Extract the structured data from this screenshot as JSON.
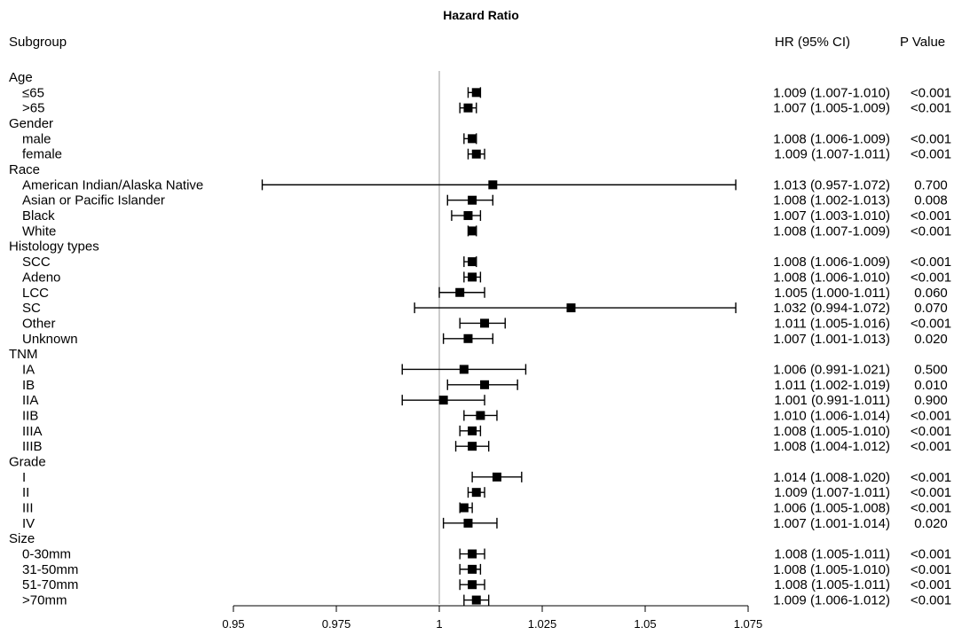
{
  "chart_data": {
    "type": "forest",
    "title": "Hazard Ratio",
    "columns": {
      "subgroup": "Subgroup",
      "hr": "HR (95% CI)",
      "p": "P Value"
    },
    "xlim": [
      0.95,
      1.075
    ],
    "reference_line": 1,
    "ticks": [
      0.95,
      0.975,
      1,
      1.025,
      1.05,
      1.075
    ],
    "tick_labels": [
      "0.95",
      "0.975",
      "1",
      "1.025",
      "1.05",
      "1.075"
    ],
    "rows": [
      {
        "kind": "header",
        "label": "Age"
      },
      {
        "kind": "item",
        "label": "≤65",
        "hr": 1.009,
        "lo": 1.007,
        "hi": 1.01,
        "ci_text": "1.009 (1.007-1.010)",
        "p": "<0.001"
      },
      {
        "kind": "item",
        "label": ">65",
        "hr": 1.007,
        "lo": 1.005,
        "hi": 1.009,
        "ci_text": "1.007 (1.005-1.009)",
        "p": "<0.001"
      },
      {
        "kind": "header",
        "label": "Gender"
      },
      {
        "kind": "item",
        "label": "male",
        "hr": 1.008,
        "lo": 1.006,
        "hi": 1.009,
        "ci_text": "1.008 (1.006-1.009)",
        "p": "<0.001"
      },
      {
        "kind": "item",
        "label": "female",
        "hr": 1.009,
        "lo": 1.007,
        "hi": 1.011,
        "ci_text": "1.009 (1.007-1.011)",
        "p": "<0.001"
      },
      {
        "kind": "header",
        "label": "Race"
      },
      {
        "kind": "item",
        "label": "American Indian/Alaska Native",
        "hr": 1.013,
        "lo": 0.957,
        "hi": 1.072,
        "ci_text": "1.013 (0.957-1.072)",
        "p": "0.700"
      },
      {
        "kind": "item",
        "label": "Asian or Pacific Islander",
        "hr": 1.008,
        "lo": 1.002,
        "hi": 1.013,
        "ci_text": "1.008 (1.002-1.013)",
        "p": "0.008"
      },
      {
        "kind": "item",
        "label": "Black",
        "hr": 1.007,
        "lo": 1.003,
        "hi": 1.01,
        "ci_text": "1.007 (1.003-1.010)",
        "p": "<0.001"
      },
      {
        "kind": "item",
        "label": "White",
        "hr": 1.008,
        "lo": 1.007,
        "hi": 1.009,
        "ci_text": "1.008 (1.007-1.009)",
        "p": "<0.001"
      },
      {
        "kind": "header",
        "label": "Histology types"
      },
      {
        "kind": "item",
        "label": "SCC",
        "hr": 1.008,
        "lo": 1.006,
        "hi": 1.009,
        "ci_text": "1.008 (1.006-1.009)",
        "p": "<0.001"
      },
      {
        "kind": "item",
        "label": "Adeno",
        "hr": 1.008,
        "lo": 1.006,
        "hi": 1.01,
        "ci_text": "1.008 (1.006-1.010)",
        "p": "<0.001"
      },
      {
        "kind": "item",
        "label": "LCC",
        "hr": 1.005,
        "lo": 1.0,
        "hi": 1.011,
        "ci_text": "1.005 (1.000-1.011)",
        "p": "0.060"
      },
      {
        "kind": "item",
        "label": "SC",
        "hr": 1.032,
        "lo": 0.994,
        "hi": 1.072,
        "ci_text": "1.032 (0.994-1.072)",
        "p": "0.070"
      },
      {
        "kind": "item",
        "label": "Other",
        "hr": 1.011,
        "lo": 1.005,
        "hi": 1.016,
        "ci_text": "1.011 (1.005-1.016)",
        "p": "<0.001"
      },
      {
        "kind": "item",
        "label": "Unknown",
        "hr": 1.007,
        "lo": 1.001,
        "hi": 1.013,
        "ci_text": "1.007 (1.001-1.013)",
        "p": "0.020"
      },
      {
        "kind": "header",
        "label": "TNM"
      },
      {
        "kind": "item",
        "label": "IA",
        "hr": 1.006,
        "lo": 0.991,
        "hi": 1.021,
        "ci_text": "1.006 (0.991-1.021)",
        "p": "0.500"
      },
      {
        "kind": "item",
        "label": "IB",
        "hr": 1.011,
        "lo": 1.002,
        "hi": 1.019,
        "ci_text": "1.011 (1.002-1.019)",
        "p": "0.010"
      },
      {
        "kind": "item",
        "label": "IIA",
        "hr": 1.001,
        "lo": 0.991,
        "hi": 1.011,
        "ci_text": "1.001 (0.991-1.011)",
        "p": "0.900"
      },
      {
        "kind": "item",
        "label": "IIB",
        "hr": 1.01,
        "lo": 1.006,
        "hi": 1.014,
        "ci_text": "1.010 (1.006-1.014)",
        "p": "<0.001"
      },
      {
        "kind": "item",
        "label": "IIIA",
        "hr": 1.008,
        "lo": 1.005,
        "hi": 1.01,
        "ci_text": "1.008 (1.005-1.010)",
        "p": "<0.001"
      },
      {
        "kind": "item",
        "label": "IIIB",
        "hr": 1.008,
        "lo": 1.004,
        "hi": 1.012,
        "ci_text": "1.008 (1.004-1.012)",
        "p": "<0.001"
      },
      {
        "kind": "header",
        "label": "Grade"
      },
      {
        "kind": "item",
        "label": "I",
        "hr": 1.014,
        "lo": 1.008,
        "hi": 1.02,
        "ci_text": "1.014 (1.008-1.020)",
        "p": "<0.001"
      },
      {
        "kind": "item",
        "label": "II",
        "hr": 1.009,
        "lo": 1.007,
        "hi": 1.011,
        "ci_text": "1.009 (1.007-1.011)",
        "p": "<0.001"
      },
      {
        "kind": "item",
        "label": "III",
        "hr": 1.006,
        "lo": 1.005,
        "hi": 1.008,
        "ci_text": "1.006 (1.005-1.008)",
        "p": "<0.001"
      },
      {
        "kind": "item",
        "label": "IV",
        "hr": 1.007,
        "lo": 1.001,
        "hi": 1.014,
        "ci_text": "1.007 (1.001-1.014)",
        "p": "0.020"
      },
      {
        "kind": "header",
        "label": "Size"
      },
      {
        "kind": "item",
        "label": "0-30mm",
        "hr": 1.008,
        "lo": 1.005,
        "hi": 1.011,
        "ci_text": "1.008 (1.005-1.011)",
        "p": "<0.001"
      },
      {
        "kind": "item",
        "label": "31-50mm",
        "hr": 1.008,
        "lo": 1.005,
        "hi": 1.01,
        "ci_text": "1.008 (1.005-1.010)",
        "p": "<0.001"
      },
      {
        "kind": "item",
        "label": "51-70mm",
        "hr": 1.008,
        "lo": 1.005,
        "hi": 1.011,
        "ci_text": "1.008 (1.005-1.011)",
        "p": "<0.001"
      },
      {
        "kind": "item",
        "label": ">70mm",
        "hr": 1.009,
        "lo": 1.006,
        "hi": 1.012,
        "ci_text": "1.009 (1.006-1.012)",
        "p": "<0.001"
      }
    ]
  }
}
